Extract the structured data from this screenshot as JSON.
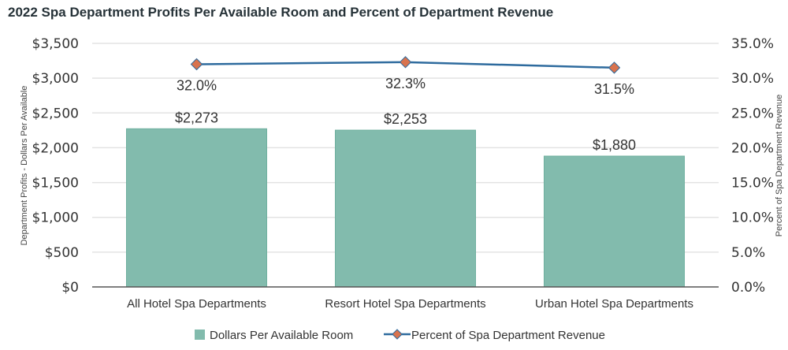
{
  "chart_data": {
    "type": "bar+line",
    "title": "2022 Spa Department Profits Per Available Room and Percent of Department Revenue",
    "categories": [
      "All Hotel Spa Departments",
      "Resort Hotel Spa Departments",
      "Urban Hotel Spa Departments"
    ],
    "series": [
      {
        "name": "Dollars Per Available Room",
        "type": "bar",
        "axis": "left",
        "values": [
          2273,
          2253,
          1880
        ],
        "labels": [
          "$2,273",
          "$2,253",
          "$1,880"
        ],
        "color": "#82bbad"
      },
      {
        "name": "Percent of Spa Department Revenue",
        "type": "line",
        "axis": "right",
        "values": [
          32.0,
          32.3,
          31.5
        ],
        "labels": [
          "32.0%",
          "32.3%",
          "31.5%"
        ],
        "color": "#2e6b9e",
        "marker_color": "#d9734e"
      }
    ],
    "ylabel": "Department Profits -  Dollars Per Available",
    "y2label": "Percent of Spa Department Revenue",
    "ylim": [
      0,
      3500
    ],
    "y2lim": [
      0,
      35
    ],
    "yticks": [
      "$0",
      "$500",
      "$1,000",
      "$1,500",
      "$2,000",
      "$2,500",
      "$3,000",
      "$3,500"
    ],
    "y2ticks": [
      "0.0%",
      "5.0%",
      "10.0%",
      "15.0%",
      "20.0%",
      "25.0%",
      "30.0%",
      "35.0%"
    ],
    "grid": true,
    "legend": "bottom"
  }
}
